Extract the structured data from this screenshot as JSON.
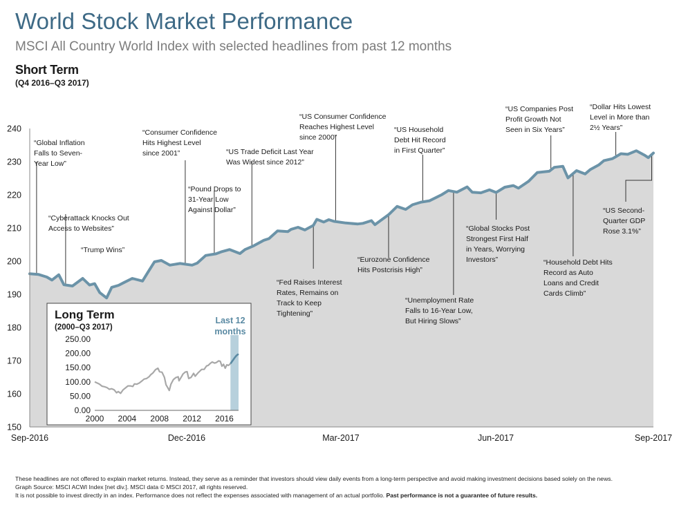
{
  "header": {
    "title": "World Stock Market Performance",
    "subtitle": "MSCI All Country World Index with selected headlines from past 12 months"
  },
  "short_term": {
    "label": "Short Term",
    "period": "(Q4 2016–Q3 2017)"
  },
  "long_term": {
    "label": "Long Term",
    "period": "(2000–Q3 2017)",
    "highlight_label_line1": "Last 12",
    "highlight_label_line2": "months"
  },
  "colors": {
    "title": "#3e6a86",
    "line": "#6b93a8",
    "area": "#d9d9d9",
    "inset_gray": "#a8a8a8",
    "inset_highlight": "#b7d0dc",
    "inset_recent": "#5a8aa3"
  },
  "chart_data": [
    {
      "type": "area",
      "ylim": [
        150,
        240
      ],
      "y_ticks": [
        "150",
        "160",
        "170",
        "180",
        "190",
        "200",
        "210",
        "220",
        "230",
        "240"
      ],
      "x_tick_labels": [
        "Sep-2016",
        "Dec-2016",
        "Mar-2017",
        "Jun-2017",
        "Sep-2017"
      ],
      "x_range": [
        "2016-09-30",
        "2017-09-30"
      ],
      "series": [
        {
          "values": [
            [
              "2016-09-30",
              196.2
            ],
            [
              "2016-10-05",
              196.0
            ],
            [
              "2016-10-10",
              195.2
            ],
            [
              "2016-10-13",
              194.3
            ],
            [
              "2016-10-17",
              195.9
            ],
            [
              "2016-10-20",
              192.9
            ],
            [
              "2016-10-25",
              192.5
            ],
            [
              "2016-10-31",
              194.8
            ],
            [
              "2016-11-04",
              192.8
            ],
            [
              "2016-11-07",
              193.2
            ],
            [
              "2016-11-10",
              190.5
            ],
            [
              "2016-11-14",
              188.9
            ],
            [
              "2016-11-17",
              192.1
            ],
            [
              "2016-11-21",
              192.7
            ],
            [
              "2016-11-24",
              193.5
            ],
            [
              "2016-11-29",
              194.8
            ],
            [
              "2016-12-05",
              194.0
            ],
            [
              "2016-12-08",
              196.5
            ],
            [
              "2016-12-12",
              199.8
            ],
            [
              "2016-12-16",
              200.2
            ],
            [
              "2016-12-21",
              198.8
            ],
            [
              "2016-12-27",
              199.3
            ],
            [
              "2017-01-03",
              198.8
            ],
            [
              "2017-01-06",
              199.4
            ],
            [
              "2017-01-11",
              201.7
            ],
            [
              "2017-01-17",
              202.2
            ],
            [
              "2017-01-20",
              202.8
            ],
            [
              "2017-01-25",
              203.5
            ],
            [
              "2017-01-31",
              202.3
            ],
            [
              "2017-02-03",
              203.5
            ],
            [
              "2017-02-08",
              204.6
            ],
            [
              "2017-02-14",
              206.3
            ],
            [
              "2017-02-17",
              206.8
            ],
            [
              "2017-02-22",
              209.1
            ],
            [
              "2017-02-28",
              208.9
            ],
            [
              "2017-03-02",
              209.6
            ],
            [
              "2017-03-06",
              210.2
            ],
            [
              "2017-03-10",
              209.4
            ],
            [
              "2017-03-15",
              210.8
            ],
            [
              "2017-03-17",
              212.6
            ],
            [
              "2017-03-21",
              211.8
            ],
            [
              "2017-03-24",
              212.5
            ],
            [
              "2017-03-27",
              212.0
            ],
            [
              "2017-04-03",
              211.5
            ],
            [
              "2017-04-10",
              211.2
            ],
            [
              "2017-04-13",
              211.4
            ],
            [
              "2017-04-18",
              212.2
            ],
            [
              "2017-04-20",
              211.0
            ],
            [
              "2017-04-24",
              212.5
            ],
            [
              "2017-04-28",
              214.0
            ],
            [
              "2017-05-03",
              216.5
            ],
            [
              "2017-05-08",
              215.6
            ],
            [
              "2017-05-12",
              217.0
            ],
            [
              "2017-05-17",
              217.8
            ],
            [
              "2017-05-22",
              218.2
            ],
            [
              "2017-05-29",
              220.0
            ],
            [
              "2017-06-02",
              221.3
            ],
            [
              "2017-06-07",
              220.8
            ],
            [
              "2017-06-13",
              222.4
            ],
            [
              "2017-06-16",
              220.8
            ],
            [
              "2017-06-21",
              220.6
            ],
            [
              "2017-06-26",
              221.5
            ],
            [
              "2017-06-30",
              220.7
            ],
            [
              "2017-07-05",
              222.3
            ],
            [
              "2017-07-10",
              222.8
            ],
            [
              "2017-07-13",
              222.0
            ],
            [
              "2017-07-19",
              224.1
            ],
            [
              "2017-07-24",
              226.7
            ],
            [
              "2017-07-31",
              227.1
            ],
            [
              "2017-08-03",
              228.3
            ],
            [
              "2017-08-08",
              228.6
            ],
            [
              "2017-08-11",
              225.1
            ],
            [
              "2017-08-16",
              227.3
            ],
            [
              "2017-08-21",
              226.3
            ],
            [
              "2017-08-24",
              227.6
            ],
            [
              "2017-08-29",
              229.0
            ],
            [
              "2017-09-01",
              230.3
            ],
            [
              "2017-09-06",
              230.9
            ],
            [
              "2017-09-11",
              232.4
            ],
            [
              "2017-09-15",
              232.2
            ],
            [
              "2017-09-20",
              233.3
            ],
            [
              "2017-09-25",
              231.9
            ],
            [
              "2017-09-27",
              231.2
            ],
            [
              "2017-09-30",
              232.6
            ]
          ]
        }
      ],
      "annotations": [
        {
          "lines": [
            "“Global Inflation",
            "Falls to Seven-",
            "Year Low”"
          ],
          "date": "2016-10-04",
          "value": 196.2
        },
        {
          "lines": [
            "“Cyberattack Knocks Out",
            "Access to Websites”"
          ],
          "date": "2016-10-21",
          "value": 195.5
        },
        {
          "lines": [
            "“Trump Wins”"
          ],
          "date": "2016-11-09"
        },
        {
          "lines": [
            "“Consumer Confidence",
            "Hits Highest Level",
            "since 2001”"
          ],
          "date": "2016-12-30",
          "value": 199.0
        },
        {
          "lines": [
            "“Pound Drops to",
            "31-Year Low",
            "Against Dollar”"
          ],
          "date": "2017-01-16",
          "value": 202.8
        },
        {
          "lines": [
            "“US Trade Deficit Last Year",
            "Was Widest since 2012”"
          ],
          "date": "2017-02-07",
          "value": 205.0
        },
        {
          "lines": [
            "“Fed Raises Interest",
            "Rates, Remains on",
            "Track to Keep",
            "Tightening”"
          ],
          "date": "2017-03-15",
          "value": 210.8
        },
        {
          "lines": [
            "“US Consumer Confidence",
            "Reaches Highest Level",
            "since 2000”"
          ],
          "date": "2017-03-28",
          "value": 212.0
        },
        {
          "lines": [
            "“Eurozone Confidence",
            "Hits Postcrisis High”"
          ],
          "date": "2017-04-28",
          "value": 214.0
        },
        {
          "lines": [
            "“US Household",
            "Debt Hit Record",
            "in First Quarter”"
          ],
          "date": "2017-05-18",
          "value": 218.0
        },
        {
          "lines": [
            "“Unemployment Rate",
            "Falls to 16-Year Low,",
            "But Hiring Slows”"
          ],
          "date": "2017-06-05",
          "value": 221.0
        },
        {
          "lines": [
            "“Global Stocks Post",
            "Strongest First Half",
            "in Years, Worrying",
            "Investors”"
          ],
          "date": "2017-06-30",
          "value": 220.7
        },
        {
          "lines": [
            "“US Companies Post",
            "Profit Growth Not",
            "Seen in Six Years”"
          ],
          "date": "2017-08-01",
          "value": 227.5
        },
        {
          "lines": [
            "“Household Debt Hits",
            "Record as Auto",
            "Loans and Credit",
            "Cards Climb”"
          ],
          "date": "2017-08-14",
          "value": 225.5
        },
        {
          "lines": [
            "“Dollar Hits Lowest",
            "Level in More than",
            "2½ Years”"
          ],
          "date": "2017-09-08",
          "value": 231.0
        },
        {
          "lines": [
            "“US Second-",
            "Quarter GDP",
            "Rose 3.1%”"
          ],
          "date": "2017-09-29",
          "value": 232.0
        }
      ]
    },
    {
      "type": "line",
      "title": "Long Term",
      "y_tick_labels": [
        "0.00",
        "50.00",
        "100.00",
        "150.00",
        "200.00",
        "250.00"
      ],
      "ylim": [
        0,
        250
      ],
      "x_tick_labels": [
        "2000",
        "2004",
        "2008",
        "2012",
        "2016"
      ],
      "xlim": [
        2000.0,
        2017.75
      ],
      "highlight_range": [
        2016.75,
        2017.75
      ],
      "series": [
        {
          "values": [
            [
              2000.0,
              100
            ],
            [
              2000.3,
              96
            ],
            [
              2000.6,
              92
            ],
            [
              2000.9,
              85
            ],
            [
              2001.2,
              83
            ],
            [
              2001.5,
              80
            ],
            [
              2001.8,
              74
            ],
            [
              2002.1,
              76
            ],
            [
              2002.4,
              72
            ],
            [
              2002.7,
              62
            ],
            [
              2002.9,
              66
            ],
            [
              2003.2,
              60
            ],
            [
              2003.5,
              72
            ],
            [
              2003.8,
              79
            ],
            [
              2004.1,
              86
            ],
            [
              2004.4,
              86
            ],
            [
              2004.7,
              84
            ],
            [
              2004.9,
              93
            ],
            [
              2005.2,
              92
            ],
            [
              2005.5,
              96
            ],
            [
              2005.8,
              103
            ],
            [
              2006.1,
              110
            ],
            [
              2006.4,
              112
            ],
            [
              2006.7,
              118
            ],
            [
              2006.9,
              125
            ],
            [
              2007.2,
              132
            ],
            [
              2007.5,
              143
            ],
            [
              2007.8,
              148
            ],
            [
              2008.0,
              136
            ],
            [
              2008.3,
              134
            ],
            [
              2008.6,
              116
            ],
            [
              2008.8,
              90
            ],
            [
              2009.0,
              80
            ],
            [
              2009.2,
              70
            ],
            [
              2009.4,
              92
            ],
            [
              2009.7,
              108
            ],
            [
              2010.0,
              115
            ],
            [
              2010.3,
              118
            ],
            [
              2010.4,
              104
            ],
            [
              2010.7,
              118
            ],
            [
              2010.9,
              128
            ],
            [
              2011.2,
              135
            ],
            [
              2011.4,
              136
            ],
            [
              2011.6,
              112
            ],
            [
              2011.9,
              116
            ],
            [
              2012.2,
              130
            ],
            [
              2012.4,
              120
            ],
            [
              2012.7,
              130
            ],
            [
              2012.9,
              136
            ],
            [
              2013.2,
              144
            ],
            [
              2013.5,
              144
            ],
            [
              2013.8,
              156
            ],
            [
              2014.0,
              158
            ],
            [
              2014.3,
              166
            ],
            [
              2014.5,
              170
            ],
            [
              2014.8,
              166
            ],
            [
              2015.0,
              168
            ],
            [
              2015.3,
              174
            ],
            [
              2015.5,
              172
            ],
            [
              2015.7,
              155
            ],
            [
              2015.9,
              162
            ],
            [
              2016.1,
              148
            ],
            [
              2016.3,
              160
            ],
            [
              2016.5,
              158
            ],
            [
              2016.75,
              164
            ]
          ]
        },
        {
          "values": [
            [
              2016.75,
              164
            ],
            [
              2016.9,
              170
            ],
            [
              2017.1,
              178
            ],
            [
              2017.3,
              186
            ],
            [
              2017.5,
              193
            ],
            [
              2017.75,
              198
            ]
          ]
        }
      ]
    }
  ],
  "footer": {
    "line1": "These headlines are not offered to explain market returns. Instead, they serve as a reminder that investors should view daily events from a long-term perspective and avoid making investment decisions based solely on the news.",
    "line2": "Graph Source: MSCI ACWI Index [net div.]. MSCI data © MSCI 2017, all rights reserved.",
    "line3": "It is not possible to invest directly in an index. Performance does not reflect the expenses associated with management of an actual portfolio.",
    "line3_bold": "Past performance is not a guarantee of future results."
  }
}
